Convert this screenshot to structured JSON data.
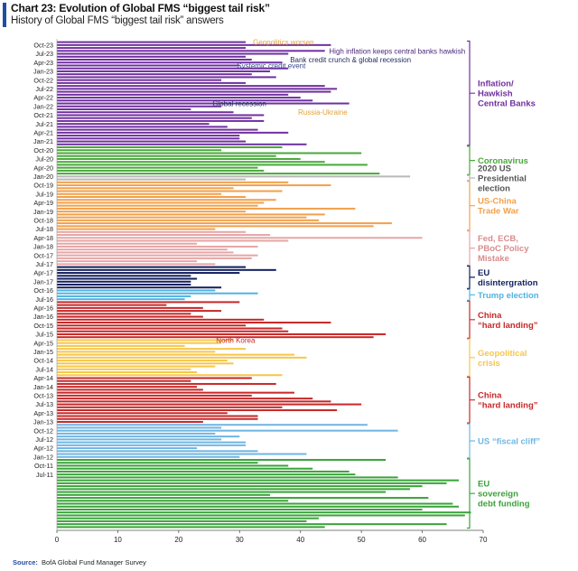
{
  "header": {
    "title": "Chart 23: Evolution of Global FMS “biggest tail risk”",
    "subtitle": "History of Global FMS “biggest tail risk” answers"
  },
  "footer": {
    "source_label": "Source:",
    "source_text": "BofA Global Fund Manager Survey"
  },
  "chart_data": {
    "type": "bar",
    "orientation": "horizontal",
    "title": "Chart 23: Evolution of Global FMS “biggest tail risk”",
    "subtitle": "History of Global FMS “biggest tail risk” answers",
    "xlim": [
      0,
      70
    ],
    "xticks": [
      0,
      10,
      20,
      30,
      40,
      50,
      60,
      70
    ],
    "ytick_labels": [
      "Oct-23",
      "Jul-23",
      "Apr-23",
      "Jan-23",
      "Oct-22",
      "Jul-22",
      "Apr-22",
      "Jan-22",
      "Oct-21",
      "Jul-21",
      "Apr-21",
      "Jan-21",
      "Oct-20",
      "Jul-20",
      "Apr-20",
      "Jan-20",
      "Oct-19",
      "Jul-19",
      "Apr-19",
      "Jan-19",
      "Oct-18",
      "Jul-18",
      "Apr-18",
      "Jan-18",
      "Oct-17",
      "Jul-17",
      "Apr-17",
      "Jan-17",
      "Oct-16",
      "Jul-16",
      "Apr-16",
      "Jan-16",
      "Oct-15",
      "Jul-15",
      "Apr-15",
      "Jan-15",
      "Oct-14",
      "Jul-14",
      "Apr-14",
      "Jan-14",
      "Oct-13",
      "Jul-13",
      "Apr-13",
      "Jan-13",
      "Oct-12",
      "Jul-12",
      "Apr-12",
      "Jan-12",
      "Oct-11",
      "Jul-11"
    ],
    "values": [
      31,
      45,
      31,
      44,
      38,
      31,
      32,
      37,
      30,
      38,
      35,
      32,
      36,
      27,
      31,
      44,
      46,
      45,
      38,
      40,
      42,
      48,
      27,
      22,
      29,
      34,
      32,
      34,
      25,
      28,
      33,
      38,
      30,
      30,
      31,
      41,
      37,
      27,
      50,
      36,
      40,
      44,
      51,
      33,
      34,
      53,
      58,
      31,
      38,
      45,
      29,
      37,
      27,
      31,
      36,
      34,
      33,
      49,
      31,
      44,
      41,
      43,
      55,
      52,
      26,
      31,
      35,
      60,
      38,
      23,
      33,
      28,
      29,
      33,
      32,
      23,
      26,
      31,
      36,
      30,
      22,
      23,
      22,
      22,
      27,
      26,
      33,
      22,
      21,
      30,
      18,
      24,
      27,
      22,
      24,
      34,
      45,
      31,
      37,
      38,
      54,
      52,
      29,
      27,
      21,
      31,
      26,
      39,
      41,
      28,
      29,
      26,
      22,
      23,
      37,
      32,
      22,
      36,
      23,
      24,
      39,
      32,
      42,
      45,
      50,
      37,
      46,
      28,
      33,
      33,
      24,
      51,
      27,
      56,
      26,
      30,
      27,
      31,
      31,
      23,
      33,
      41,
      30,
      54,
      33,
      38,
      42,
      48,
      49,
      56,
      66,
      64,
      60,
      58,
      54,
      35,
      61,
      38,
      65,
      66,
      60,
      68,
      67,
      43,
      41,
      64,
      44
    ],
    "color_groups": [
      {
        "label": "Inflation/ Hawkish Central Banks",
        "color": "#7030a0"
      },
      {
        "label": "Coronavirus",
        "color": "#4aa83b"
      },
      {
        "label": "2020 US Presidential election",
        "color": "#b8b8b8"
      },
      {
        "label": "US-China Trade War",
        "color": "#f2a04c"
      },
      {
        "label": "Fed, ECB, PBoC Policy Mistake",
        "color": "#e6a6a6"
      },
      {
        "label": "EU disintergration",
        "color": "#12205e"
      },
      {
        "label": "Trump election",
        "color": "#4fb3e0"
      },
      {
        "label": "China “hard landing”",
        "color": "#c62828"
      },
      {
        "label": "Geopolitical crisis",
        "color": "#f7c64a"
      },
      {
        "label": "China “hard landing”",
        "color": "#c62828"
      },
      {
        "label": "US “fiscal cliff”",
        "color": "#6fb6e3"
      },
      {
        "label": "EU sovereign debt funding",
        "color": "#3aa33a"
      }
    ],
    "annotations": [
      "Geopolitics worsen",
      "High inflation keeps central banks hawkish",
      "Systemic credit event",
      "Bank credit crunch & global recession",
      "Global recession",
      "Russia-Ukraine",
      "North Korea"
    ],
    "grid": false,
    "legend": "right"
  }
}
